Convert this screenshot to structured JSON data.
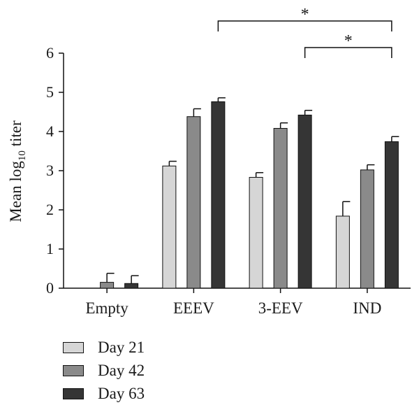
{
  "chart_data": {
    "type": "bar",
    "ylabel_main": "Mean log",
    "ylabel_sub": "10",
    "ylabel_tail": " titer",
    "xlabel": "",
    "ylim": [
      0,
      6
    ],
    "yticks": [
      0,
      1,
      2,
      3,
      4,
      5,
      6
    ],
    "categories": [
      "Empty",
      "EEEV",
      "3-EEV",
      "IND"
    ],
    "series": [
      {
        "name": "Day 21",
        "color": "#d6d6d6",
        "values": [
          null,
          3.12,
          2.83,
          1.84
        ],
        "errors": [
          null,
          0.12,
          0.12,
          0.37
        ]
      },
      {
        "name": "Day 42",
        "color": "#8a8a8a",
        "values": [
          0.15,
          4.38,
          4.08,
          3.02
        ],
        "errors": [
          0.23,
          0.2,
          0.14,
          0.13
        ]
      },
      {
        "name": "Day 63",
        "color": "#353535",
        "values": [
          0.12,
          4.76,
          4.42,
          3.74
        ],
        "errors": [
          0.2,
          0.1,
          0.12,
          0.13
        ]
      }
    ],
    "significance": [
      {
        "from_category": "EEEV",
        "to_category": "IND",
        "label": "*"
      },
      {
        "from_category": "3-EEV",
        "to_category": "IND",
        "label": "*"
      }
    ],
    "legend_position": "bottom-left",
    "grid": false
  }
}
